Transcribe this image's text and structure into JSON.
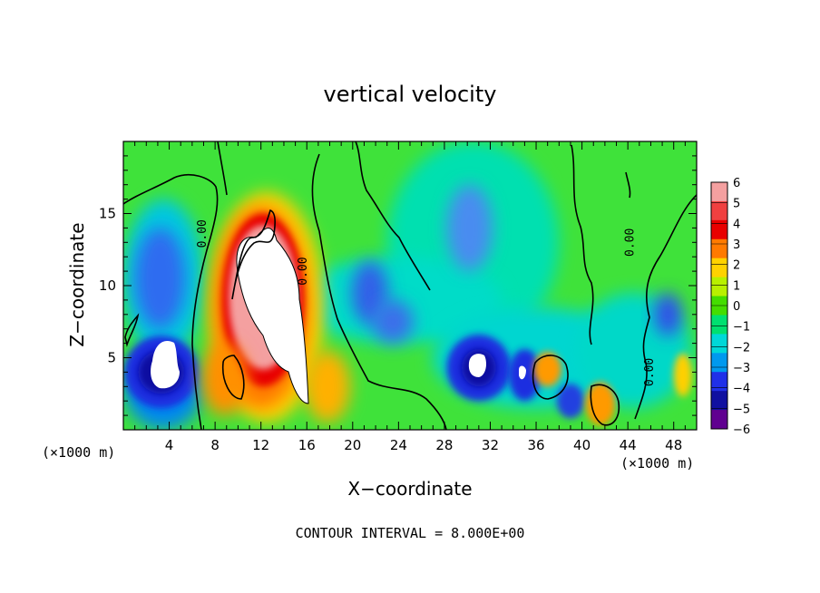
{
  "chart_data": {
    "type": "heatmap",
    "title": "vertical velocity",
    "xlabel": "X−coordinate",
    "ylabel": "Z−coordinate",
    "x_unit_left": "(×1000 m)",
    "x_unit_right": "(×1000 m)",
    "footer": "CONTOUR INTERVAL = 8.000E+00",
    "xlim": [
      0,
      50
    ],
    "ylim": [
      0,
      20
    ],
    "x_ticks": [
      4,
      8,
      12,
      16,
      20,
      24,
      28,
      32,
      36,
      40,
      44,
      48
    ],
    "y_ticks": [
      5,
      10,
      15
    ],
    "grid": false,
    "colorbar": {
      "levels": [
        6,
        5,
        4,
        3,
        2,
        1,
        0,
        -1,
        -2,
        -3,
        -4,
        -5,
        -6
      ],
      "labels": [
        "6",
        "5",
        "4",
        "3",
        "2",
        "1",
        "0",
        "−1",
        "−2",
        "−3",
        "−4",
        "−5",
        "−6"
      ],
      "colors": [
        "#f4a0a0",
        "#f04040",
        "#e80000",
        "#ff7a00",
        "#ffd200",
        "#b8f000",
        "#44dd00",
        "#00e070",
        "#00d8d8",
        "#0099ee",
        "#2030e8",
        "#1010a0",
        "#600090"
      ]
    },
    "contour_labels": [
      {
        "text": "0.00",
        "x": 7.2,
        "z": 13.6
      },
      {
        "text": "0.00",
        "x": 16.0,
        "z": 11.0
      },
      {
        "text": "0.00",
        "x": 44.5,
        "z": 13.0
      },
      {
        "text": "0.00",
        "x": 46.2,
        "z": 4.0
      }
    ],
    "features": [
      {
        "type": "updraft",
        "x": 12.5,
        "z": 9.5,
        "peak": 8
      },
      {
        "type": "updraft",
        "x": 9.5,
        "z": 3.6,
        "peak": 7
      },
      {
        "type": "downdraft",
        "x": 3.3,
        "z": 5.0,
        "peak": -7
      },
      {
        "type": "downdraft",
        "x": 31.0,
        "z": 4.3,
        "peak": -7
      },
      {
        "type": "downdraft",
        "x": 35.0,
        "z": 3.8,
        "peak": -6
      },
      {
        "type": "updraft",
        "x": 37.0,
        "z": 4.2,
        "peak": 3
      },
      {
        "type": "updraft",
        "x": 41.5,
        "z": 1.8,
        "peak": 3
      }
    ]
  }
}
